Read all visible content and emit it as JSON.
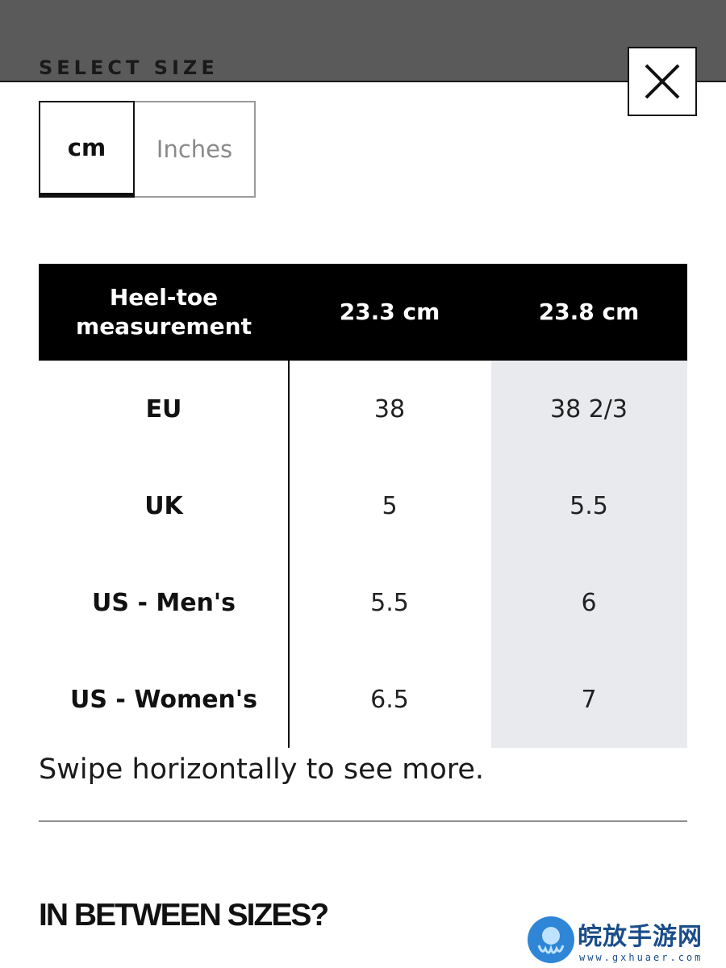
{
  "header": {
    "title": "SELECT SIZE",
    "close_icon": "close-icon"
  },
  "unit_toggle": {
    "options": [
      "cm",
      "Inches"
    ],
    "selected": "cm"
  },
  "size_table": {
    "header": {
      "label": "Heel-toe measurement",
      "columns": [
        "23.3 cm",
        "23.8 cm"
      ]
    },
    "rows": [
      {
        "label": "EU",
        "values": [
          "38",
          "38 2/3"
        ]
      },
      {
        "label": "UK",
        "values": [
          "5",
          "5.5"
        ]
      },
      {
        "label": "US - Men's",
        "values": [
          "5.5",
          "6"
        ]
      },
      {
        "label": "US - Women's",
        "values": [
          "6.5",
          "7"
        ]
      }
    ],
    "highlight_color": "#e9eaed"
  },
  "hint": "Swipe horizontally to see more.",
  "section_title": "IN BETWEEN SIZES?",
  "watermark": {
    "text": "皖放手游网",
    "url": "www.gxhuaer.com",
    "icon": "octopus-logo-icon"
  }
}
